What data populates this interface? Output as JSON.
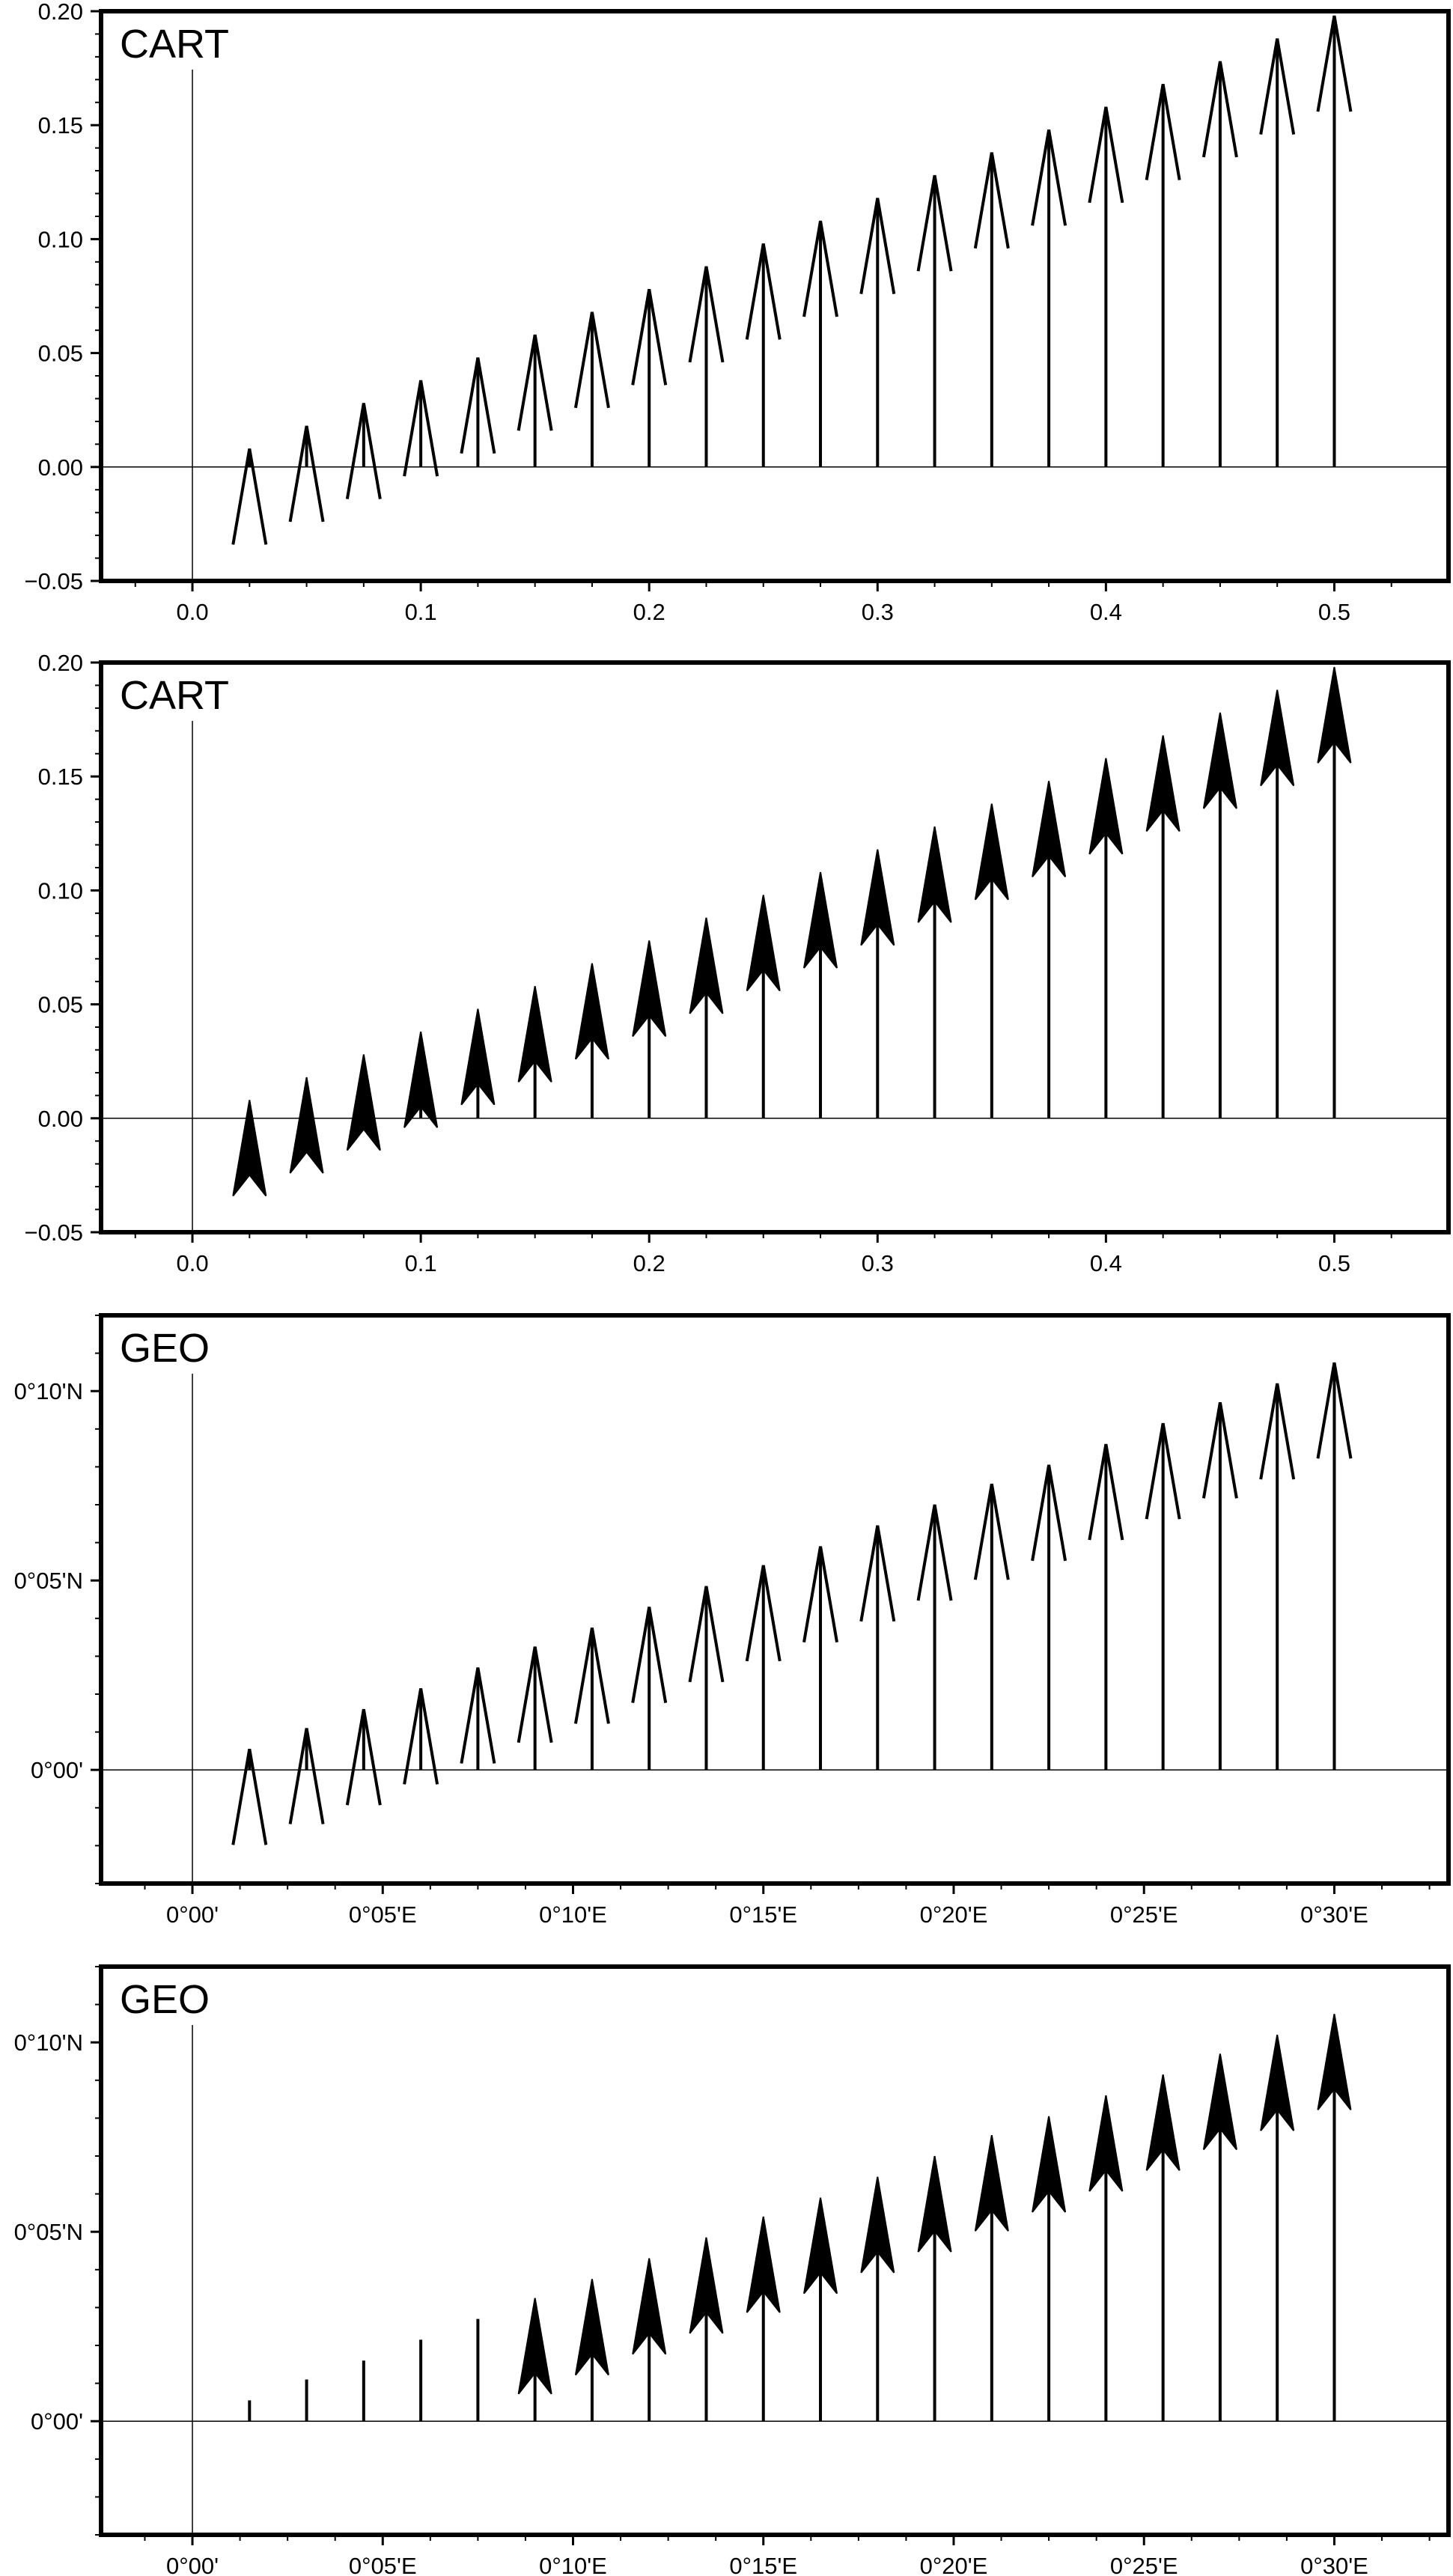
{
  "chart_data": [
    {
      "type": "vector",
      "title": "CART",
      "arrow_head": "open",
      "xlim": [
        -0.04,
        0.55
      ],
      "ylim": [
        -0.05,
        0.2
      ],
      "x_ticks": [
        0.0,
        0.1,
        0.2,
        0.3,
        0.4,
        0.5
      ],
      "x_tick_labels": [
        "0.0",
        "0.1",
        "0.2",
        "0.3",
        "0.4",
        "0.5"
      ],
      "y_ticks": [
        -0.05,
        0.0,
        0.05,
        0.1,
        0.15,
        0.2
      ],
      "y_tick_labels": [
        "−0.05",
        "0.00",
        "0.05",
        "0.10",
        "0.15",
        "0.20"
      ],
      "reference_lines": {
        "x": 0.0,
        "y": 0.0
      },
      "x": [
        0.025,
        0.05,
        0.075,
        0.1,
        0.125,
        0.15,
        0.175,
        0.2,
        0.225,
        0.25,
        0.275,
        0.3,
        0.325,
        0.35,
        0.375,
        0.4,
        0.425,
        0.45,
        0.475,
        0.5
      ],
      "y_tip": [
        0.008,
        0.018,
        0.028,
        0.038,
        0.048,
        0.058,
        0.068,
        0.078,
        0.088,
        0.098,
        0.108,
        0.118,
        0.128,
        0.138,
        0.148,
        0.158,
        0.168,
        0.178,
        0.188,
        0.198
      ]
    },
    {
      "type": "vector",
      "title": "CART",
      "arrow_head": "filled",
      "xlim": [
        -0.04,
        0.55
      ],
      "ylim": [
        -0.05,
        0.2
      ],
      "x_ticks": [
        0.0,
        0.1,
        0.2,
        0.3,
        0.4,
        0.5
      ],
      "x_tick_labels": [
        "0.0",
        "0.1",
        "0.2",
        "0.3",
        "0.4",
        "0.5"
      ],
      "y_ticks": [
        -0.05,
        0.0,
        0.05,
        0.1,
        0.15,
        0.2
      ],
      "y_tick_labels": [
        "−0.05",
        "0.00",
        "0.05",
        "0.10",
        "0.15",
        "0.20"
      ],
      "reference_lines": {
        "x": 0.0,
        "y": 0.0
      },
      "x": [
        0.025,
        0.05,
        0.075,
        0.1,
        0.125,
        0.15,
        0.175,
        0.2,
        0.225,
        0.25,
        0.275,
        0.3,
        0.325,
        0.35,
        0.375,
        0.4,
        0.425,
        0.45,
        0.475,
        0.5
      ],
      "y_tip": [
        0.008,
        0.018,
        0.028,
        0.038,
        0.048,
        0.058,
        0.068,
        0.078,
        0.088,
        0.098,
        0.108,
        0.118,
        0.128,
        0.138,
        0.148,
        0.158,
        0.168,
        0.178,
        0.188,
        0.198
      ]
    },
    {
      "type": "vector",
      "title": "GEO",
      "arrow_head": "open",
      "x_unit": "arcminutes east",
      "y_unit": "arcminutes north",
      "xlim": [
        -2.4,
        33.0
      ],
      "ylim": [
        -3.0,
        12.0
      ],
      "x_ticks": [
        0,
        5,
        10,
        15,
        20,
        25,
        30
      ],
      "x_tick_labels": [
        "0°00'",
        "0°05'E",
        "0°10'E",
        "0°15'E",
        "0°20'E",
        "0°25'E",
        "0°30'E"
      ],
      "y_ticks": [
        0,
        5,
        10
      ],
      "y_tick_labels": [
        "0°00'",
        "0°05'N",
        "0°10'N"
      ],
      "reference_lines": {
        "x": 0,
        "y": 0
      },
      "x": [
        1.5,
        3.0,
        4.5,
        6.0,
        7.5,
        9.0,
        10.5,
        12.0,
        13.5,
        15.0,
        16.5,
        18.0,
        19.5,
        21.0,
        22.5,
        24.0,
        25.5,
        27.0,
        28.5,
        30.0
      ],
      "y_tip": [
        0.55,
        1.1,
        1.6,
        2.15,
        2.7,
        3.25,
        3.75,
        4.3,
        4.85,
        5.4,
        5.9,
        6.45,
        7.0,
        7.55,
        8.05,
        8.6,
        9.15,
        9.7,
        10.2,
        10.75
      ]
    },
    {
      "type": "vector",
      "title": "GEO",
      "arrow_head": "filled",
      "head_shown_from_index": 5,
      "x_unit": "arcminutes east",
      "y_unit": "arcminutes north",
      "xlim": [
        -2.4,
        33.0
      ],
      "ylim": [
        -3.0,
        12.0
      ],
      "x_ticks": [
        0,
        5,
        10,
        15,
        20,
        25,
        30
      ],
      "x_tick_labels": [
        "0°00'",
        "0°05'E",
        "0°10'E",
        "0°15'E",
        "0°20'E",
        "0°25'E",
        "0°30'E"
      ],
      "y_ticks": [
        0,
        5,
        10
      ],
      "y_tick_labels": [
        "0°00'",
        "0°05'N",
        "0°10'N"
      ],
      "reference_lines": {
        "x": 0,
        "y": 0
      },
      "x": [
        1.5,
        3.0,
        4.5,
        6.0,
        7.5,
        9.0,
        10.5,
        12.0,
        13.5,
        15.0,
        16.5,
        18.0,
        19.5,
        21.0,
        22.5,
        24.0,
        25.5,
        27.0,
        28.5,
        30.0
      ],
      "y_tip": [
        0.55,
        1.1,
        1.6,
        2.15,
        2.7,
        3.25,
        3.75,
        4.3,
        4.85,
        5.4,
        5.9,
        6.45,
        7.0,
        7.55,
        8.05,
        8.6,
        9.15,
        9.7,
        10.2,
        10.75
      ]
    }
  ]
}
